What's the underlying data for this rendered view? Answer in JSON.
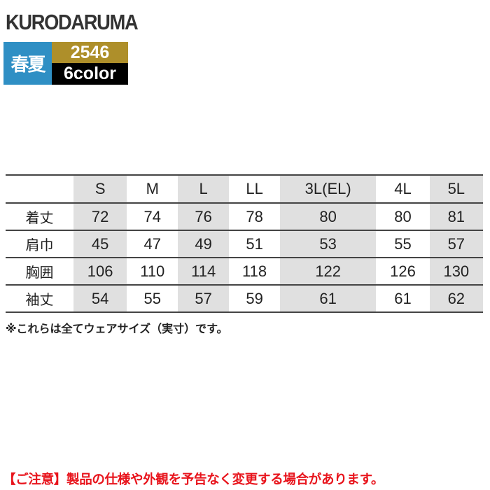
{
  "brand": "KURODARUMA",
  "badge": {
    "season": "春夏",
    "model": "2546",
    "colors": "6color"
  },
  "colors": {
    "season_bg": "#2f8fc4",
    "model_bg": "#ae8f2a",
    "colors_bg": "#000000",
    "caution": "#e8141c"
  },
  "table": {
    "headers": [
      "",
      "S",
      "M",
      "L",
      "LL",
      "3L(EL)",
      "4L",
      "5L"
    ],
    "rows": [
      {
        "label": "着丈",
        "values": [
          "72",
          "74",
          "76",
          "78",
          "80",
          "80",
          "81"
        ]
      },
      {
        "label": "肩巾",
        "values": [
          "45",
          "47",
          "49",
          "51",
          "53",
          "55",
          "57"
        ]
      },
      {
        "label": "胸囲",
        "values": [
          "106",
          "110",
          "114",
          "118",
          "122",
          "126",
          "130"
        ]
      },
      {
        "label": "袖丈",
        "values": [
          "54",
          "55",
          "57",
          "59",
          "61",
          "61",
          "62"
        ]
      }
    ]
  },
  "note": "※これらは全てウェアサイズ（実寸）です。",
  "caution": "【ご注意】製品の仕様や外観を予告なく変更する場合があります。"
}
